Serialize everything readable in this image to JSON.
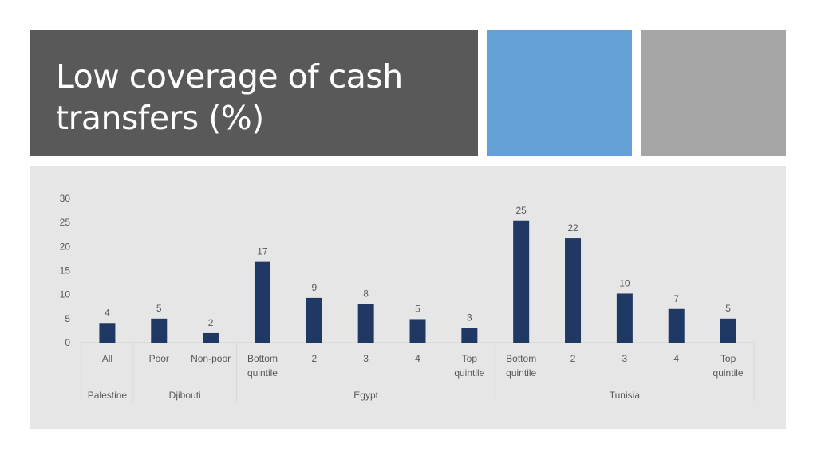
{
  "slide": {
    "title": "Low coverage of cash transfers (%)",
    "colors": {
      "title_bg": "#595959",
      "accent_blue": "#63a1d6",
      "accent_gray": "#a5a5a5",
      "panel_bg": "#e6e6e6",
      "bar": "#203864"
    }
  },
  "chart_data": {
    "type": "bar",
    "title": "",
    "xlabel": "",
    "ylabel": "",
    "ylim": [
      0,
      30
    ],
    "yticks": [
      0,
      5,
      10,
      15,
      20,
      25,
      30
    ],
    "grid": false,
    "legend": "none",
    "categories": [
      {
        "label": [
          "All"
        ],
        "group": "Palestine",
        "value": 4.1
      },
      {
        "label": [
          "Poor"
        ],
        "group": "Djibouti",
        "value": 5.0
      },
      {
        "label": [
          "Non-poor"
        ],
        "group": "Djibouti",
        "value": 2.0
      },
      {
        "label": [
          "Bottom",
          "quintile"
        ],
        "group": "Egypt",
        "value": 16.8
      },
      {
        "label": [
          "2"
        ],
        "group": "Egypt",
        "value": 9.3
      },
      {
        "label": [
          "3"
        ],
        "group": "Egypt",
        "value": 8.0
      },
      {
        "label": [
          "4"
        ],
        "group": "Egypt",
        "value": 4.9
      },
      {
        "label": [
          "Top",
          "quintile"
        ],
        "group": "Egypt",
        "value": 3.1
      },
      {
        "label": [
          "Bottom",
          "quintile"
        ],
        "group": "Tunisia",
        "value": 25.4
      },
      {
        "label": [
          "2"
        ],
        "group": "Tunisia",
        "value": 21.7
      },
      {
        "label": [
          "3"
        ],
        "group": "Tunisia",
        "value": 10.2
      },
      {
        "label": [
          "4"
        ],
        "group": "Tunisia",
        "value": 7.0
      },
      {
        "label": [
          "Top",
          "quintile"
        ],
        "group": "Tunisia",
        "value": 5.0
      }
    ],
    "data_labels": [
      "4",
      "5",
      "2",
      "17",
      "9",
      "8",
      "5",
      "3",
      "25",
      "22",
      "10",
      "7",
      "5"
    ],
    "groups": [
      "Palestine",
      "Djibouti",
      "Egypt",
      "Tunisia"
    ]
  }
}
